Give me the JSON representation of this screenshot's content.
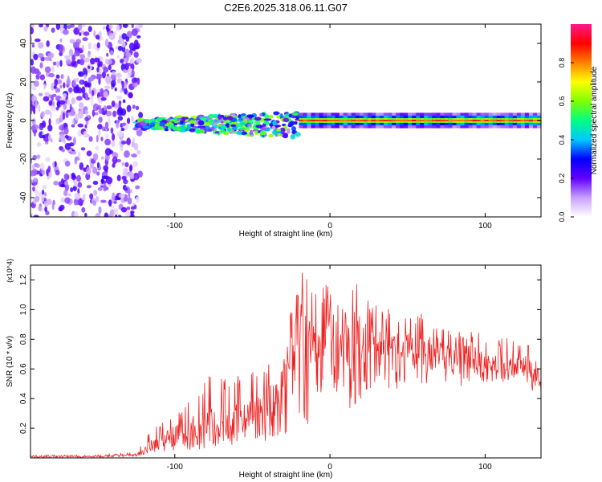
{
  "title": "C2E6.2025.318.06.11.G07",
  "chart_data": [
    {
      "type": "heatmap",
      "xlabel": "Height of straight line (km)",
      "ylabel": "Frequency (Hz)",
      "xlim": [
        -193,
        136
      ],
      "ylim": [
        -50,
        50
      ],
      "x_ticks": [
        -100,
        0,
        100
      ],
      "x_tick_labels": [
        "-100",
        "0",
        "100"
      ],
      "y_ticks": [
        -40,
        -20,
        0,
        20,
        40
      ],
      "y_tick_labels": [
        "-40",
        "-20",
        "0",
        "20",
        "40"
      ],
      "colorbar": {
        "label": "Normalized spectral amplitude",
        "range": [
          0,
          1
        ],
        "ticks": [
          0,
          0.2,
          0.4,
          0.6,
          0.8
        ],
        "tick_labels": [
          "0.0",
          "0.2",
          "0.4",
          "0.6",
          "0.8"
        ],
        "colors": [
          "#ffffff",
          "#c8a0ff",
          "#6000ff",
          "#0000ff",
          "#00c8ff",
          "#00ff80",
          "#80ff00",
          "#ffff00",
          "#ff8000",
          "#ff0000",
          "#ff1a8c"
        ]
      },
      "regions": [
        {
          "name": "noise",
          "x_range": [
            -193,
            -122
          ],
          "freq_range": [
            -50,
            50
          ],
          "amplitude": 0.1
        },
        {
          "name": "signal-band",
          "x_range": [
            -125,
            -20
          ],
          "freq_center": -2,
          "amplitude": 0.4
        },
        {
          "name": "carrier",
          "x_range": [
            -20,
            136
          ],
          "freq_center": 0,
          "amplitude": 0.85
        }
      ]
    },
    {
      "type": "line",
      "xlabel": "Height of straight line (km)",
      "ylabel": "SNR (10 * v/v)",
      "y_multiplier": "(x10^4)",
      "xlim": [
        -193,
        136
      ],
      "ylim": [
        0,
        1.3
      ],
      "x_ticks": [
        -100,
        0,
        100
      ],
      "x_tick_labels": [
        "-100",
        "0",
        "100"
      ],
      "y_ticks": [
        0.2,
        0.4,
        0.6,
        0.8,
        1.0,
        1.2
      ],
      "y_tick_labels": [
        "0.2",
        "0.4",
        "0.6",
        "0.8",
        "1.0",
        "1.2"
      ],
      "line_color": "#ee2222",
      "series": [
        {
          "name": "SNR",
          "x": [
            -193,
            -150,
            -125,
            -115,
            -100,
            -80,
            -60,
            -45,
            -35,
            -25,
            -20,
            -15,
            -10,
            -5,
            0,
            5,
            10,
            15,
            20,
            30,
            40,
            50,
            60,
            70,
            80,
            90,
            100,
            110,
            115,
            120,
            125,
            130,
            136
          ],
          "y": [
            0.01,
            0.01,
            0.02,
            0.08,
            0.15,
            0.2,
            0.25,
            0.3,
            0.4,
            0.6,
            0.9,
            0.7,
            0.8,
            0.9,
            0.85,
            0.7,
            0.8,
            0.75,
            0.75,
            0.8,
            0.7,
            0.75,
            0.7,
            0.72,
            0.65,
            0.7,
            0.6,
            0.65,
            0.6,
            0.62,
            0.65,
            0.55,
            0.5
          ],
          "y_high": [
            0.02,
            0.02,
            0.04,
            0.2,
            0.3,
            0.55,
            0.55,
            0.6,
            0.75,
            1.0,
            1.28,
            1.25,
            1.1,
            1.2,
            1.15,
            1.05,
            1.0,
            1.26,
            1.1,
            1.05,
            1.0,
            0.95,
            0.98,
            0.9,
            0.85,
            0.85,
            0.85,
            0.8,
            0.85,
            0.75,
            0.8,
            0.78,
            0.55
          ],
          "y_low": [
            0.0,
            0.0,
            0.01,
            0.03,
            0.05,
            0.05,
            0.08,
            0.1,
            0.08,
            0.15,
            0.3,
            0.2,
            0.35,
            0.4,
            0.5,
            0.35,
            0.4,
            0.28,
            0.4,
            0.5,
            0.45,
            0.5,
            0.45,
            0.5,
            0.45,
            0.5,
            0.5,
            0.5,
            0.52,
            0.55,
            0.55,
            0.45,
            0.45
          ]
        }
      ]
    }
  ]
}
